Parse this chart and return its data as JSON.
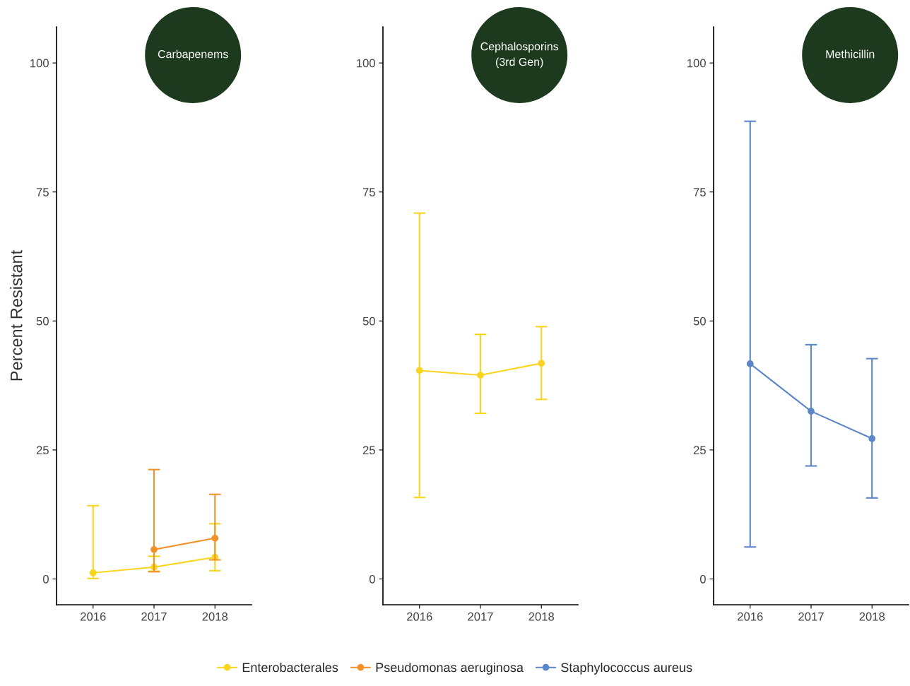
{
  "chart_data": [
    {
      "type": "line",
      "title": "Carbapenems",
      "ylabel": "Percent Resistant",
      "categories": [
        "2016",
        "2017",
        "2018"
      ],
      "ylim": [
        -5,
        107
      ],
      "yticks": [
        0,
        25,
        50,
        75,
        100
      ],
      "marker": "circle",
      "legend": "bottom",
      "series": [
        {
          "name": "Enterobacterales",
          "color": "#fad51f",
          "values": [
            1.2,
            2.3,
            4.2
          ],
          "errors": [
            [
              0.1,
              14.2
            ],
            [
              1.5,
              4.4
            ],
            [
              1.6,
              10.7
            ]
          ]
        },
        {
          "name": "Pseudomonas aeruginosa",
          "color": "#f0922a",
          "values": [
            null,
            5.7,
            7.9
          ],
          "errors": [
            null,
            [
              1.4,
              21.2
            ],
            [
              3.7,
              16.4
            ]
          ]
        }
      ]
    },
    {
      "type": "line",
      "title": "Cephalosporins\n(3rd Gen)",
      "categories": [
        "2016",
        "2017",
        "2018"
      ],
      "ylim": [
        -5,
        107
      ],
      "yticks": [
        0,
        25,
        50,
        75,
        100
      ],
      "marker": "circle",
      "series": [
        {
          "name": "Enterobacterales",
          "color": "#fad51f",
          "values": [
            40.4,
            39.5,
            41.8
          ],
          "errors": [
            [
              15.8,
              70.9
            ],
            [
              32.1,
              47.4
            ],
            [
              34.8,
              48.9
            ]
          ]
        }
      ]
    },
    {
      "type": "line",
      "title": "Methicillin",
      "categories": [
        "2016",
        "2017",
        "2018"
      ],
      "ylim": [
        -5,
        107
      ],
      "yticks": [
        0,
        25,
        50,
        75,
        100
      ],
      "marker": "circle",
      "series": [
        {
          "name": "Staphylococcus aureus",
          "color": "#5b87c8",
          "values": [
            41.7,
            32.5,
            27.2
          ],
          "errors": [
            [
              6.2,
              88.7
            ],
            [
              21.9,
              45.4
            ],
            [
              15.7,
              42.7
            ]
          ]
        }
      ]
    }
  ]
}
